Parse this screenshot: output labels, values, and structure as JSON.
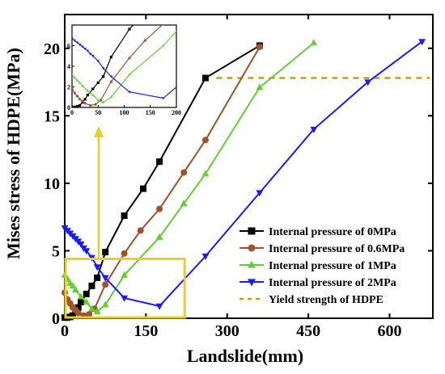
{
  "chart_data": {
    "type": "line",
    "xlabel": "Landslide(mm)",
    "ylabel": "Mises stress of HDPE(MPa)",
    "xlim": [
      0,
      680
    ],
    "ylim": [
      0,
      22.5
    ],
    "xticks": [
      0,
      150,
      300,
      450,
      600
    ],
    "yticks": [
      0,
      5,
      10,
      15,
      20
    ],
    "grid": false,
    "legend_position": "bottom-right",
    "series": [
      {
        "name": "Internal pressure of 0MPa",
        "color": "#000000",
        "marker": "square",
        "x": [
          0,
          5,
          10,
          15,
          20,
          25,
          30,
          40,
          50,
          60,
          75,
          110,
          145,
          175,
          260,
          360
        ],
        "y": [
          0.05,
          0.05,
          0.1,
          0.2,
          0.5,
          0.8,
          1.2,
          1.8,
          2.4,
          3.0,
          4.9,
          7.6,
          9.6,
          11.6,
          17.8,
          20.2
        ]
      },
      {
        "name": "Internal pressure of 0.6MPa",
        "color": "#a0522d",
        "marker": "circle",
        "x": [
          0,
          5,
          10,
          15,
          20,
          25,
          35,
          45,
          55,
          75,
          110,
          140,
          175,
          220,
          260,
          360
        ],
        "y": [
          1.9,
          1.4,
          1.1,
          0.8,
          0.6,
          0.4,
          0.2,
          0.3,
          0.7,
          2.5,
          4.8,
          6.5,
          8.1,
          10.8,
          13.2,
          20.1
        ]
      },
      {
        "name": "Internal pressure of 1MPa",
        "color": "#66cc33",
        "marker": "triangle-up",
        "x": [
          0,
          5,
          10,
          15,
          20,
          30,
          40,
          50,
          60,
          75,
          110,
          175,
          220,
          260,
          360,
          460
        ],
        "y": [
          3.2,
          2.9,
          2.6,
          2.4,
          2.1,
          1.6,
          1.2,
          0.7,
          0.5,
          1.0,
          3.2,
          6.0,
          8.5,
          10.7,
          17.1,
          20.4
        ]
      },
      {
        "name": "Internal pressure of 2MPa",
        "color": "#1a1aff",
        "marker": "triangle-down",
        "x": [
          0,
          5,
          10,
          15,
          20,
          25,
          30,
          35,
          40,
          50,
          60,
          75,
          110,
          175,
          260,
          360,
          460,
          560,
          660
        ],
        "y": [
          6.7,
          6.5,
          6.3,
          6.1,
          5.9,
          5.7,
          5.5,
          5.2,
          5.0,
          4.5,
          3.8,
          3.0,
          1.5,
          0.9,
          4.6,
          9.3,
          14.0,
          17.5,
          20.5
        ]
      }
    ],
    "reference_line": {
      "name": "Yield strength of HDPE",
      "y": 17.8,
      "color": "#c8a000",
      "style": "dashed"
    },
    "annotations": {
      "highlight_box": {
        "x": [
          0,
          220
        ],
        "y": [
          0,
          4.4
        ],
        "color": "#e8d020"
      },
      "arrow_color": "#e8d020",
      "inset": {
        "xlim": [
          0,
          200
        ],
        "ylim": [
          0,
          8
        ],
        "xticks": [
          0,
          50,
          100,
          150,
          200
        ],
        "yticks": [
          0,
          2,
          4,
          6
        ]
      }
    }
  }
}
